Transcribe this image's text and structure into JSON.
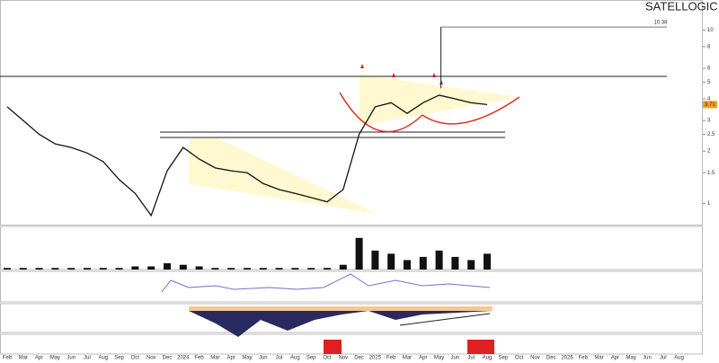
{
  "chart_data": {
    "type": "line",
    "title": "SATELLOGIC INC.",
    "categories": [
      "Feb",
      "Mar",
      "Apr",
      "May",
      "Jun",
      "Jul",
      "Aug",
      "Sep",
      "Oct",
      "Nov",
      "Dec",
      "2024",
      "Feb",
      "Mar",
      "Apr",
      "May",
      "Jun",
      "Jul",
      "Aug",
      "Sep",
      "Oct",
      "Nov",
      "Dec",
      "2025",
      "Feb",
      "Mar",
      "Apr",
      "May",
      "Jun",
      "Jul",
      "Aug",
      "Sep",
      "Oct",
      "Nov",
      "Dec",
      "2026",
      "Feb",
      "Mar",
      "Apr",
      "May",
      "Jun",
      "Jul",
      "Aug"
    ],
    "series": [
      {
        "color": "#111111",
        "values": [
          3.6,
          3.0,
          2.5,
          2.2,
          2.1,
          1.95,
          1.74,
          1.37,
          1.14,
          0.85,
          1.54,
          2.1,
          1.8,
          1.6,
          1.54,
          1.5,
          1.3,
          1.2,
          1.14,
          1.08,
          1.02,
          1.2,
          2.5,
          3.6,
          3.8,
          3.3,
          3.8,
          4.2,
          4.0,
          3.8,
          3.71,
          null,
          null,
          null,
          null,
          null,
          null,
          null,
          null,
          null,
          null,
          null,
          null
        ]
      }
    ],
    "volume": {
      "color": "#111111",
      "ylim": [
        0,
        25
      ],
      "values": [
        1,
        1,
        1,
        1,
        1,
        1,
        1,
        1,
        2,
        2,
        4,
        3,
        2,
        1,
        1,
        1,
        1,
        1,
        1,
        1,
        1,
        3,
        20,
        12,
        10,
        6,
        8,
        12,
        8,
        6,
        10,
        null,
        null,
        null,
        null,
        null,
        null,
        null,
        null,
        null,
        null,
        null,
        null
      ]
    },
    "high_marker": 10.38,
    "log_scale": true,
    "ylim": [
      0.8,
      14
    ],
    "yticks": [
      1,
      1.5,
      2,
      2.5,
      3,
      4,
      5,
      6,
      8,
      10
    ]
  }
}
